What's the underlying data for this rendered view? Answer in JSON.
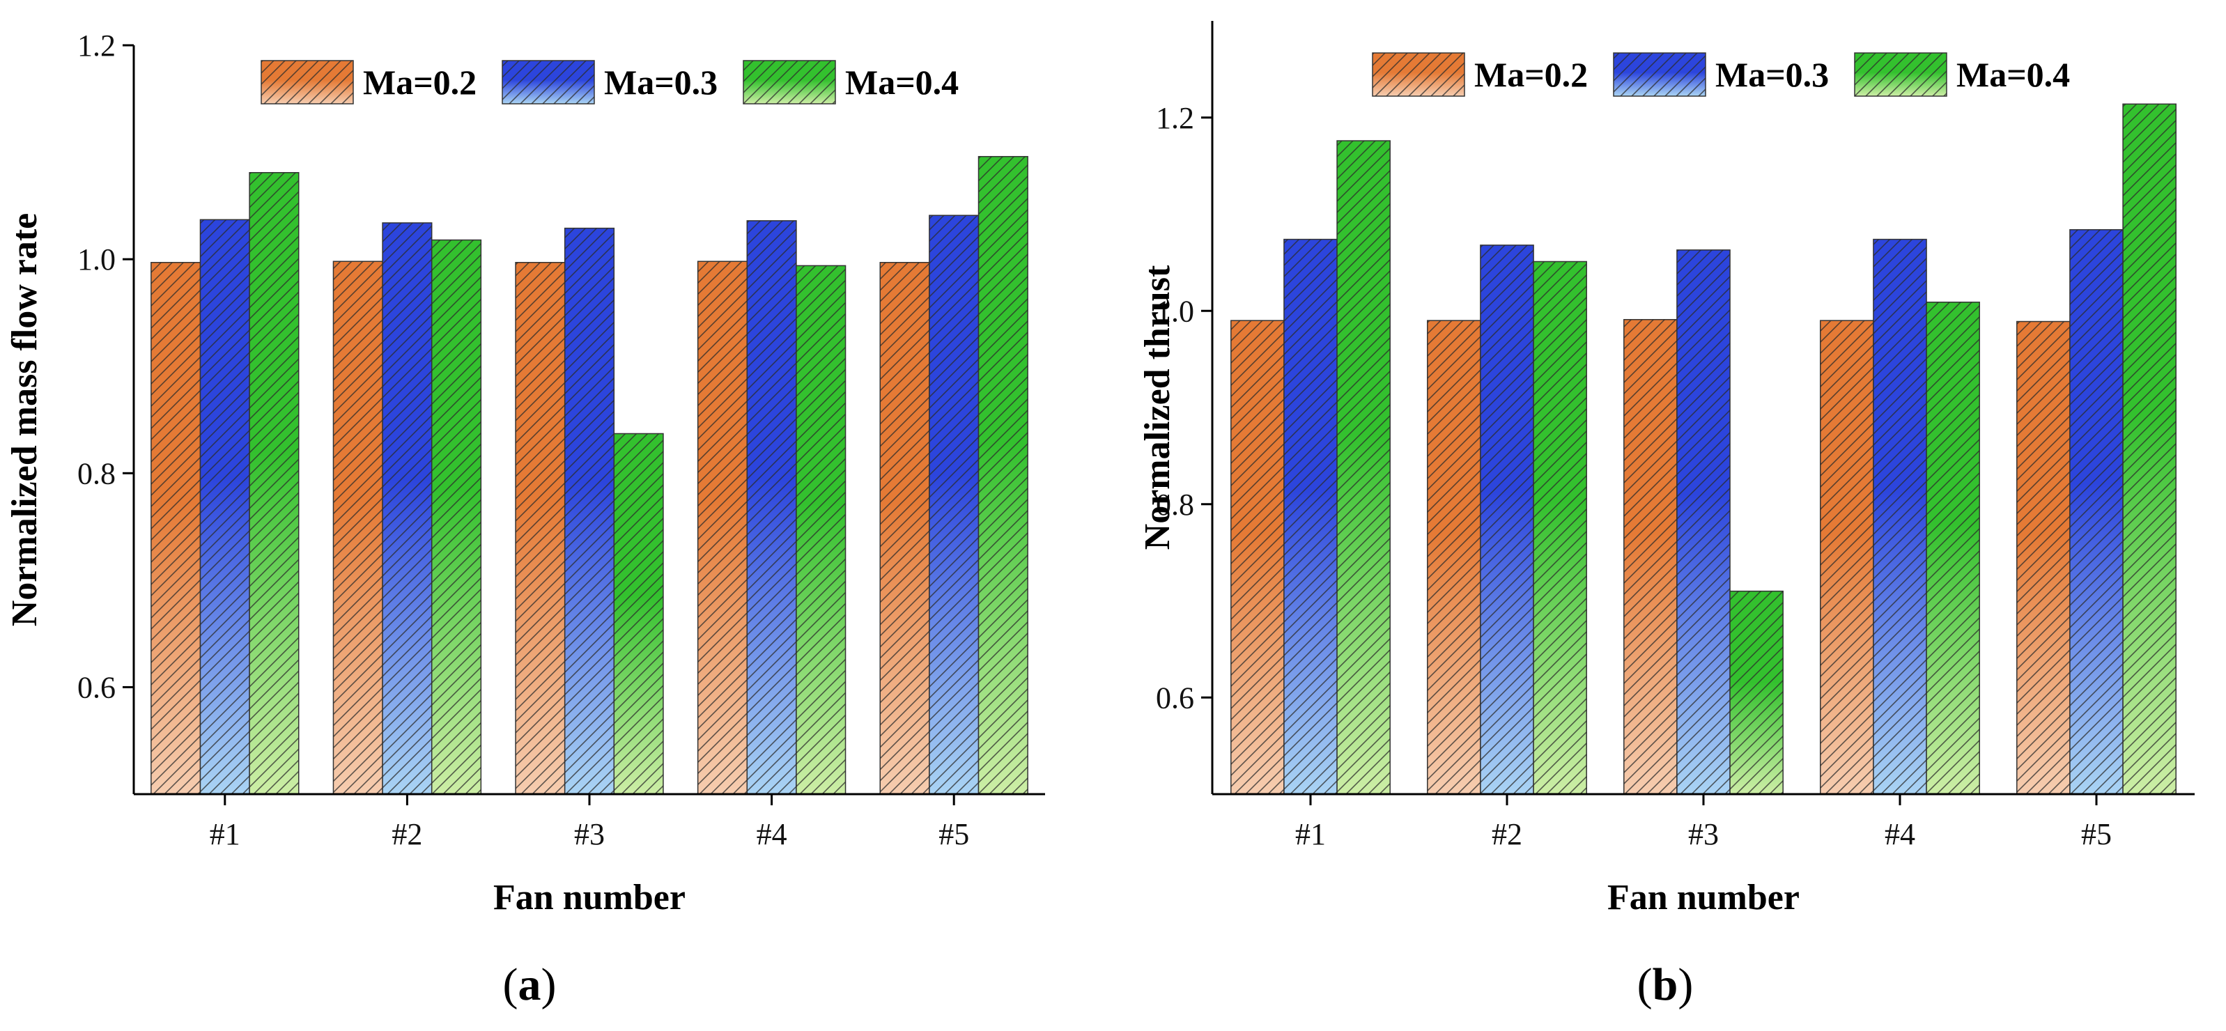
{
  "chart_data": [
    {
      "type": "bar",
      "panel_label": "a",
      "categories": [
        "#1",
        "#2",
        "#3",
        "#4",
        "#5"
      ],
      "series": [
        {
          "name": "Ma=0.2",
          "values": [
            0.997,
            0.998,
            0.997,
            0.998,
            0.997
          ]
        },
        {
          "name": "Ma=0.3",
          "values": [
            1.037,
            1.034,
            1.029,
            1.036,
            1.041
          ]
        },
        {
          "name": "Ma=0.4",
          "values": [
            1.081,
            1.018,
            0.837,
            0.994,
            1.096
          ]
        }
      ],
      "title": "",
      "xlabel": "Fan number",
      "ylabel": "Normalized mass flow rate",
      "ylim": [
        0.5,
        1.2
      ],
      "yticks": [
        "0.6",
        "0.8",
        "1.0",
        "1.2"
      ],
      "legend_position": "top"
    },
    {
      "type": "bar",
      "panel_label": "b",
      "categories": [
        "#1",
        "#2",
        "#3",
        "#4",
        "#5"
      ],
      "series": [
        {
          "name": "Ma=0.2",
          "values": [
            0.99,
            0.99,
            0.991,
            0.99,
            0.989
          ]
        },
        {
          "name": "Ma=0.3",
          "values": [
            1.074,
            1.068,
            1.063,
            1.074,
            1.084
          ]
        },
        {
          "name": "Ma=0.4",
          "values": [
            1.176,
            1.051,
            0.71,
            1.009,
            1.214
          ]
        }
      ],
      "title": "",
      "xlabel": "Fan number",
      "ylabel": "Normalized thrust",
      "ylim": [
        0.5,
        1.3
      ],
      "yticks": [
        "0.6",
        "0.8",
        "1.0",
        "1.2"
      ],
      "legend_position": "top"
    }
  ],
  "colors": {
    "Ma=0.2": {
      "top": "#e57a35",
      "bottom": "#f6cdb0"
    },
    "Ma=0.3": {
      "top": "#2c45dd",
      "bottom": "#aad4f4"
    },
    "Ma=0.4": {
      "top": "#33c12e",
      "bottom": "#cdeea6"
    }
  },
  "icons": [
    "hatch-pattern"
  ]
}
